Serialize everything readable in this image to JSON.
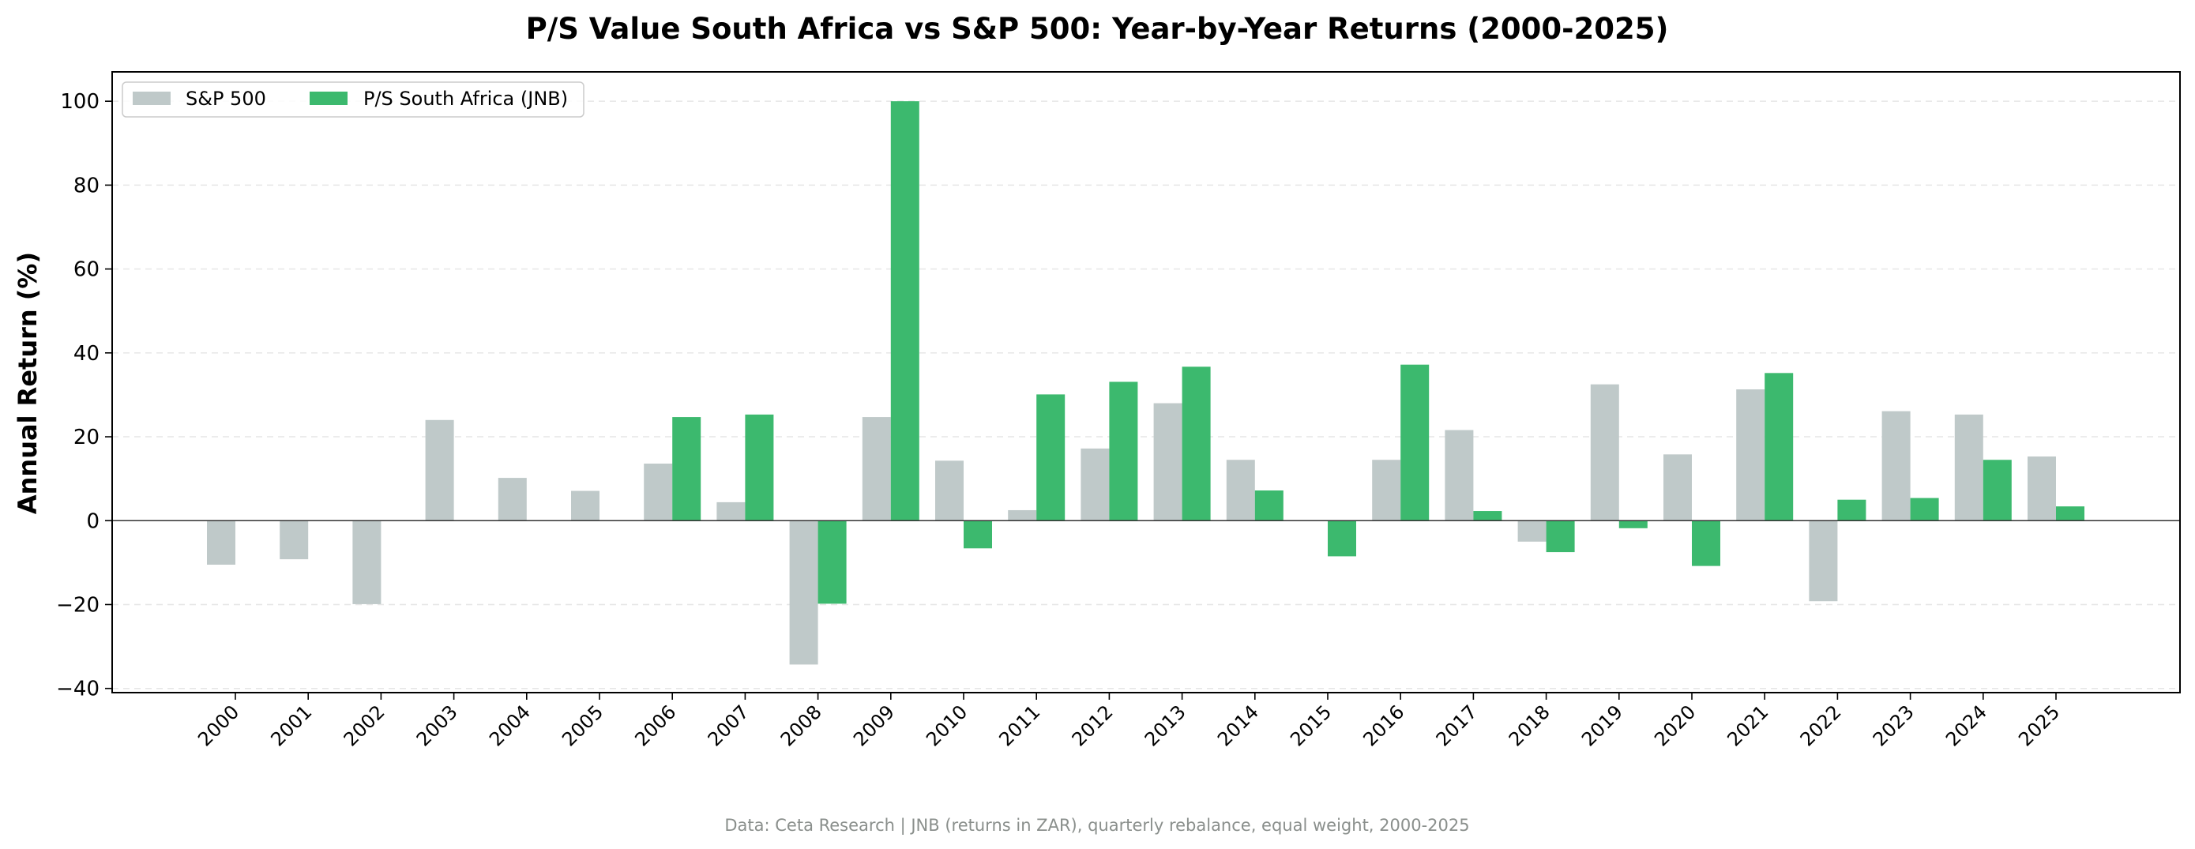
{
  "chart_data": {
    "type": "bar",
    "title": "P/S Value South Africa vs S&P 500: Year-by-Year Returns (2000-2025)",
    "ylabel": "Annual Return (%)",
    "xlabel": "",
    "ylim": [
      -41,
      107
    ],
    "yticks": [
      -40,
      -20,
      0,
      20,
      40,
      60,
      80,
      100
    ],
    "ytick_labels": [
      "−40",
      "−20",
      "0",
      "20",
      "40",
      "60",
      "80",
      "100"
    ],
    "grid": "horizontal-dashed",
    "legend_position": "top-left",
    "categories": [
      "2000",
      "2001",
      "2002",
      "2003",
      "2004",
      "2005",
      "2006",
      "2007",
      "2008",
      "2009",
      "2010",
      "2011",
      "2012",
      "2013",
      "2014",
      "2015",
      "2016",
      "2017",
      "2018",
      "2019",
      "2020",
      "2021",
      "2022",
      "2023",
      "2024",
      "2025"
    ],
    "series": [
      {
        "name": "S&P 500",
        "color": "#bfc9c9",
        "values": [
          -10.5,
          -9.2,
          -19.9,
          24.0,
          10.2,
          7.1,
          13.6,
          4.4,
          -34.3,
          24.7,
          14.3,
          2.5,
          17.2,
          28.0,
          14.5,
          0.0,
          14.5,
          21.6,
          -5.0,
          32.5,
          15.8,
          31.3,
          -19.2,
          26.1,
          25.3,
          15.3
        ]
      },
      {
        "name": "P/S South Africa (JNB)",
        "color": "#3cb96e",
        "values": [
          null,
          null,
          null,
          null,
          null,
          null,
          24.7,
          25.3,
          -19.8,
          100.0,
          -6.6,
          30.1,
          33.1,
          36.7,
          7.2,
          -8.5,
          37.2,
          2.3,
          -7.5,
          -1.8,
          -10.8,
          35.2,
          5.0,
          5.4,
          14.5,
          3.4
        ]
      }
    ],
    "footer": "Data: Ceta Research | JNB (returns in ZAR), quarterly rebalance, equal weight, 2000-2025"
  }
}
